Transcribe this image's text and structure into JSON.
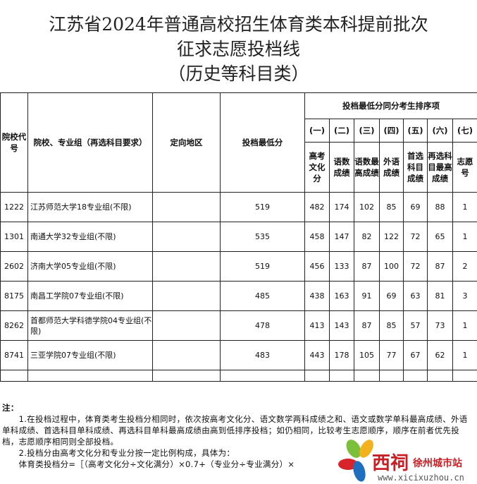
{
  "title": [
    "江苏省2024年普通高校招生体育类本科提前批次",
    "征求志愿投档线",
    "（历史等科目类）"
  ],
  "headers": {
    "code": "院校代号",
    "group": "院校、专业组（再选科目要求）",
    "region": "定向地区",
    "min_score": "投档最低分",
    "tiebreak": "投档最低分同分考生排序项",
    "nums": [
      "(一)",
      "(二)",
      "(三)",
      "(四)",
      "(五)",
      "(六)",
      "(七)"
    ],
    "items": [
      "高考文化分",
      "语数成绩",
      "语数最高成绩",
      "外语成绩",
      "首选科目成绩",
      "再选科目最高成绩",
      "志愿号"
    ]
  },
  "rows": [
    {
      "code": "1222",
      "name": "江苏师范大学18专业组(不限)",
      "region": "",
      "min": "519",
      "v": [
        "482",
        "174",
        "102",
        "85",
        "69",
        "88",
        "1"
      ]
    },
    {
      "code": "1301",
      "name": "南通大学32专业组(不限)",
      "region": "",
      "min": "535",
      "v": [
        "458",
        "147",
        "82",
        "122",
        "72",
        "65",
        "1"
      ]
    },
    {
      "code": "2602",
      "name": "济南大学05专业组(不限)",
      "region": "",
      "min": "519",
      "v": [
        "456",
        "133",
        "87",
        "100",
        "72",
        "87",
        "2"
      ]
    },
    {
      "code": "8175",
      "name": "南昌工学院07专业组(不限)",
      "region": "",
      "min": "485",
      "v": [
        "438",
        "163",
        "91",
        "69",
        "63",
        "81",
        "3"
      ]
    },
    {
      "code": "8262",
      "name": "首都师范大学科德学院04专业组(不限)",
      "region": "",
      "min": "478",
      "v": [
        "413",
        "143",
        "87",
        "85",
        "57",
        "73",
        "1"
      ]
    },
    {
      "code": "8741",
      "name": "三亚学院07专业组(不限)",
      "region": "",
      "min": "483",
      "v": [
        "443",
        "178",
        "105",
        "77",
        "67",
        "62",
        "1"
      ]
    }
  ],
  "notes": {
    "label": "注：",
    "lines": [
      "　　1.在投档过程中，体育类考生投档分相同时，依次按高考文化分、语文数学两科成绩之和、语文或数学单科最高成绩、外语单科成绩、首选科目单科成绩、再选科目单科最高成绩由高到低排序投档；如仍相同，比较考生志愿顺序，顺序在前者优先投档，志愿顺序相同则全部投档。",
      "　　2.投档分由高考文化分和专业分按一定比例构成，具体为：",
      "　　体育类投档分=［（高考文化分÷文化满分）×0.7+（专业分÷专业满分）×"
    ]
  },
  "watermark": {
    "brand": "西祠",
    "city": "徐州城市站",
    "url": "www.xicixuzhou.cn"
  }
}
